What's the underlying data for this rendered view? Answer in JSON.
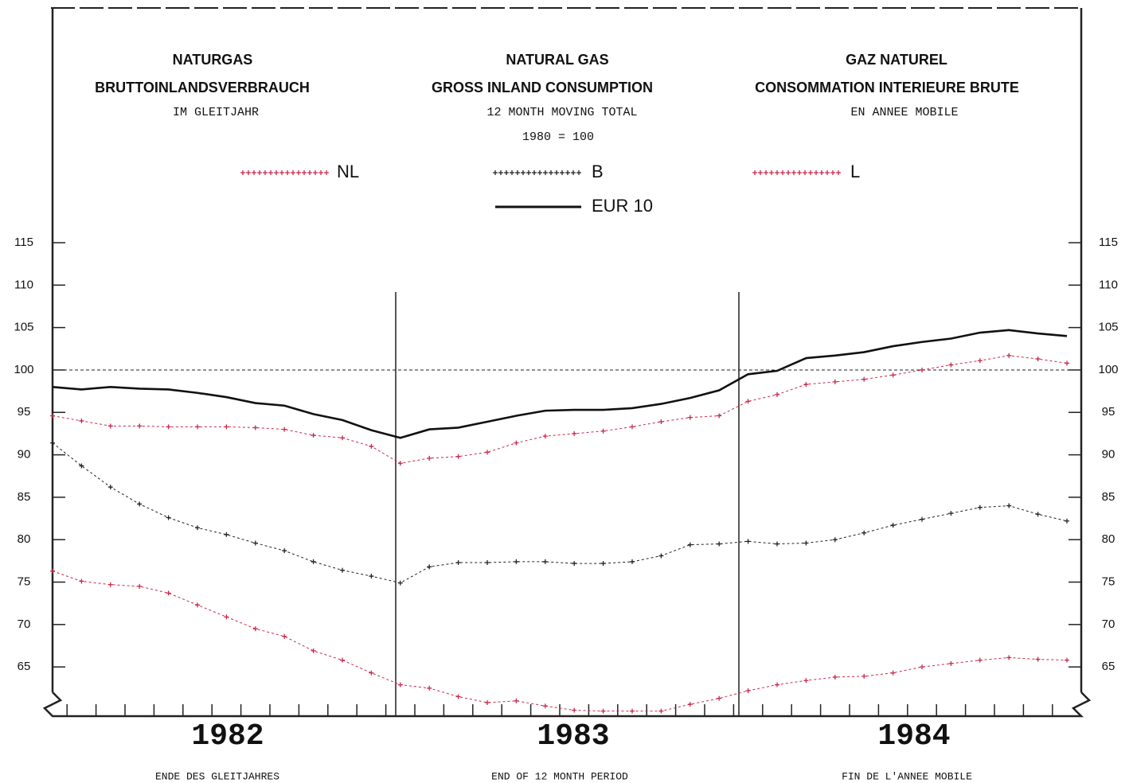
{
  "chart_data": {
    "type": "line",
    "headers": [
      [
        "NATURGAS",
        "BRUTTOINLANDSVERBRAUCH",
        "IM GLEITJAHR"
      ],
      [
        "NATURAL GAS",
        "GROSS INLAND CONSUMPTION",
        "12 MONTH MOVING TOTAL",
        "1980 = 100"
      ],
      [
        "GAZ NATUREL",
        "CONSOMMATION INTERIEURE BRUTE",
        "EN ANNEE MOBILE"
      ]
    ],
    "year_labels": [
      "1982",
      "1983",
      "1984"
    ],
    "footer_labels": [
      "ENDE DES GLEITJAHRES",
      "END OF 12 MONTH PERIOD",
      "FIN DE L'ANNEE MOBILE"
    ],
    "categories": [
      null,
      null,
      null,
      null,
      null,
      null,
      null,
      null,
      null,
      null,
      null,
      null,
      null,
      null,
      null,
      null,
      null,
      null,
      null,
      null,
      null,
      null,
      null,
      null,
      null,
      null,
      null,
      null,
      null,
      null,
      null,
      null,
      null,
      null,
      null,
      null
    ],
    "reference_line": 100,
    "ylim": [
      59.2,
      115
    ],
    "yticks": [
      65,
      70,
      75,
      80,
      85,
      90,
      95,
      100,
      105,
      110,
      115
    ],
    "series": [
      {
        "name": "NL",
        "color": "#c8284a",
        "style": "crosses",
        "values": [
          94.6,
          94.0,
          93.4,
          93.4,
          93.3,
          93.3,
          93.3,
          93.2,
          93.0,
          92.3,
          92.0,
          91.0,
          89.0,
          89.6,
          89.8,
          90.3,
          91.4,
          92.2,
          92.5,
          92.8,
          93.3,
          93.9,
          94.4,
          94.6,
          96.3,
          97.1,
          98.3,
          98.6,
          98.9,
          99.4,
          100.0,
          100.6,
          101.1,
          101.7,
          101.3,
          100.8
        ]
      },
      {
        "name": "B",
        "color": "#222222",
        "style": "crosses",
        "values": [
          91.4,
          88.7,
          86.2,
          84.2,
          82.6,
          81.4,
          80.6,
          79.6,
          78.7,
          77.4,
          76.4,
          75.7,
          74.9,
          76.8,
          77.3,
          77.3,
          77.4,
          77.4,
          77.2,
          77.2,
          77.4,
          78.1,
          79.4,
          79.5,
          79.8,
          79.5,
          79.6,
          80.0,
          80.8,
          81.7,
          82.4,
          83.1,
          83.8,
          84.0,
          83.0,
          82.2
        ]
      },
      {
        "name": "L",
        "color": "#c8284a",
        "style": "crosses",
        "values": [
          76.3,
          75.1,
          74.7,
          74.5,
          73.7,
          72.3,
          70.9,
          69.5,
          68.6,
          66.9,
          65.8,
          64.3,
          62.9,
          62.5,
          61.5,
          60.8,
          61.0,
          60.4,
          59.9,
          59.8,
          59.8,
          59.8,
          60.6,
          61.3,
          62.2,
          62.9,
          63.4,
          63.8,
          63.9,
          64.3,
          65.0,
          65.4,
          65.8,
          66.1,
          65.9,
          65.8
        ]
      },
      {
        "name": "EUR 10",
        "color": "#111111",
        "style": "solid",
        "values": [
          98.0,
          97.7,
          98.0,
          97.8,
          97.7,
          97.3,
          96.8,
          96.1,
          95.8,
          94.8,
          94.1,
          92.9,
          92.0,
          93.0,
          93.2,
          93.9,
          94.6,
          95.2,
          95.3,
          95.3,
          95.5,
          96.0,
          96.7,
          97.6,
          99.5,
          99.9,
          101.4,
          101.7,
          102.1,
          102.8,
          103.3,
          103.7,
          104.4,
          104.7,
          104.3,
          104.0
        ]
      }
    ]
  }
}
